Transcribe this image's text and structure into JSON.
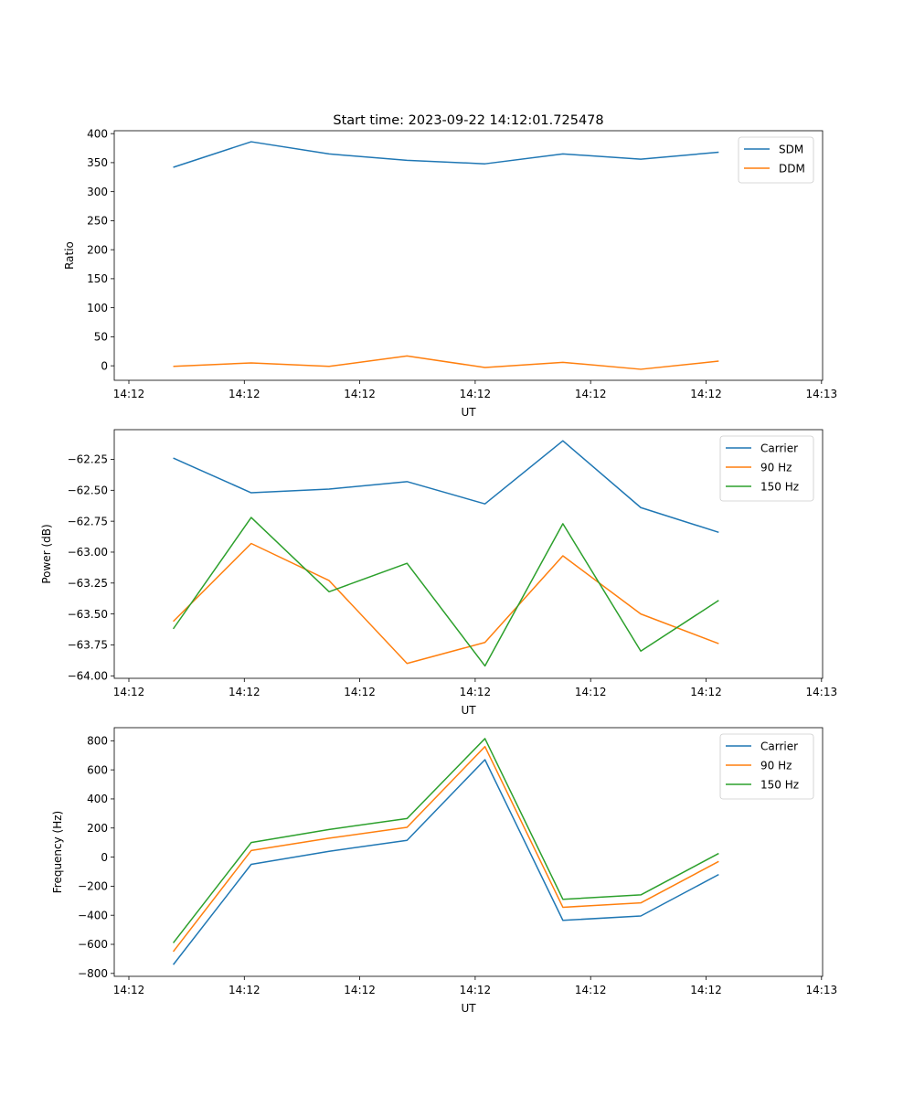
{
  "figure": {
    "title": "Start time: 2023-09-22 14:12:01.725478"
  },
  "chart_data": [
    {
      "type": "line",
      "xlabel": "UT",
      "ylabel": "Ratio",
      "x_ticks": [
        "14:12",
        "14:12",
        "14:12",
        "14:12",
        "14:12",
        "14:12",
        "14:13"
      ],
      "y_ticks": [
        0,
        50,
        100,
        150,
        200,
        250,
        300,
        350,
        400
      ],
      "y_tick_labels": [
        "0",
        "50",
        "100",
        "150",
        "200",
        "250",
        "300",
        "350",
        "400"
      ],
      "xlim": [
        0,
        6
      ],
      "ylim": [
        -25,
        405
      ],
      "x": [
        0.5,
        1.16,
        1.82,
        2.48,
        3.14,
        3.8,
        4.46,
        5.12
      ],
      "series": [
        {
          "name": "SDM",
          "color": "#1f77b4",
          "values": [
            342,
            386,
            365,
            354,
            348,
            365,
            356,
            368
          ]
        },
        {
          "name": "DDM",
          "color": "#ff7f0e",
          "values": [
            -1,
            5,
            -1,
            17,
            -3,
            6,
            -6,
            8
          ]
        }
      ],
      "legend": "top-right"
    },
    {
      "type": "line",
      "xlabel": "UT",
      "ylabel": "Power (dB)",
      "x_ticks": [
        "14:12",
        "14:12",
        "14:12",
        "14:12",
        "14:12",
        "14:12",
        "14:13"
      ],
      "y_ticks": [
        -64.0,
        -63.75,
        -63.5,
        -63.25,
        -63.0,
        -62.75,
        -62.5,
        -62.25
      ],
      "y_tick_labels": [
        "−64.00",
        "−63.75",
        "−63.50",
        "−63.25",
        "−63.00",
        "−62.75",
        "−62.50",
        "−62.25"
      ],
      "xlim": [
        0,
        6
      ],
      "ylim": [
        -64.02,
        -62.01
      ],
      "x": [
        0.5,
        1.16,
        1.82,
        2.48,
        3.14,
        3.8,
        4.46,
        5.12
      ],
      "series": [
        {
          "name": "Carrier",
          "color": "#1f77b4",
          "values": [
            -62.24,
            -62.52,
            -62.49,
            -62.43,
            -62.61,
            -62.1,
            -62.64,
            -62.84
          ]
        },
        {
          "name": "90 Hz",
          "color": "#ff7f0e",
          "values": [
            -63.56,
            -62.93,
            -63.23,
            -63.9,
            -63.73,
            -63.03,
            -63.5,
            -63.74
          ]
        },
        {
          "name": "150 Hz",
          "color": "#2ca02c",
          "values": [
            -63.62,
            -62.72,
            -63.32,
            -63.09,
            -63.92,
            -62.77,
            -63.8,
            -63.39
          ]
        }
      ],
      "legend": "top-right"
    },
    {
      "type": "line",
      "xlabel": "UT",
      "ylabel": "Frequency (Hz)",
      "x_ticks": [
        "14:12",
        "14:12",
        "14:12",
        "14:12",
        "14:12",
        "14:12",
        "14:13"
      ],
      "y_ticks": [
        -800,
        -600,
        -400,
        -200,
        0,
        200,
        400,
        600,
        800
      ],
      "y_tick_labels": [
        "−800",
        "−600",
        "−400",
        "−200",
        "0",
        "200",
        "400",
        "600",
        "800"
      ],
      "xlim": [
        0,
        6
      ],
      "ylim": [
        -820,
        890
      ],
      "x": [
        0.5,
        1.16,
        1.82,
        2.48,
        3.14,
        3.8,
        4.46,
        5.12
      ],
      "series": [
        {
          "name": "Carrier",
          "color": "#1f77b4",
          "values": [
            -740,
            -50,
            40,
            115,
            670,
            -435,
            -405,
            -120
          ]
        },
        {
          "name": "90 Hz",
          "color": "#ff7f0e",
          "values": [
            -650,
            45,
            130,
            205,
            760,
            -345,
            -315,
            -30
          ]
        },
        {
          "name": "150 Hz",
          "color": "#2ca02c",
          "values": [
            -590,
            100,
            190,
            265,
            815,
            -290,
            -260,
            25
          ]
        }
      ],
      "legend": "top-right"
    }
  ]
}
